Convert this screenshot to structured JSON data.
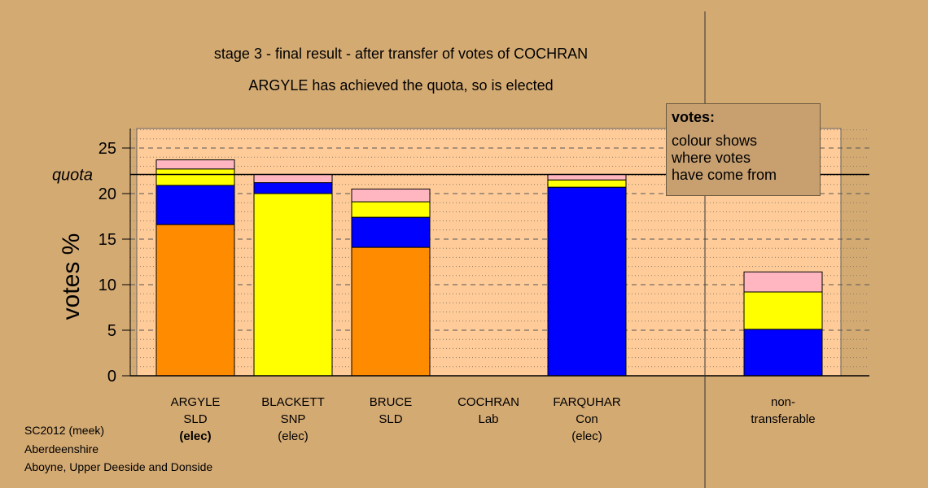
{
  "title": {
    "line1": "stage 3 - final result - after transfer of votes of COCHRAN",
    "line2": "ARGYLE has achieved the quota, so is elected"
  },
  "legend": {
    "heading": "votes:",
    "lines": [
      "colour shows",
      "where votes",
      "have come from"
    ]
  },
  "footer": {
    "line1": "SC2012 (meek)",
    "line2": "Aberdeenshire",
    "line3": "Aboyne, Upper Deeside and Donside"
  },
  "colors": {
    "background": "#d4aa73",
    "plot_area": "#ffcc99",
    "orange": "#ff8c00",
    "yellow": "#ffff00",
    "blue": "#0000ff",
    "pink": "#ffb6c1"
  },
  "chart_data": {
    "type": "bar",
    "stacked": true,
    "ylabel": "votes %",
    "ylim": [
      0,
      27
    ],
    "yticks": [
      0,
      5,
      10,
      15,
      20,
      25
    ],
    "quota": 22.1,
    "quota_label": "quota",
    "grid": true,
    "categories": [
      {
        "lines": [
          "ARGYLE",
          "SLD",
          "(elec)"
        ],
        "bold_line": 2
      },
      {
        "lines": [
          "BLACKETT",
          "SNP",
          "(elec)"
        ]
      },
      {
        "lines": [
          "BRUCE",
          "SLD"
        ]
      },
      {
        "lines": [
          "COCHRAN",
          "Lab"
        ]
      },
      {
        "lines": [
          "FARQUHAR",
          "Con",
          "(elec)"
        ]
      },
      {
        "lines": [
          "non-",
          "transferable"
        ]
      }
    ],
    "series": [
      {
        "color": "#ff8c00",
        "values": [
          16.6,
          0,
          14.1,
          0,
          0,
          0
        ]
      },
      {
        "color": "#0000ff",
        "values": [
          4.3,
          1.2,
          3.3,
          0,
          20.7,
          5.1
        ]
      },
      {
        "color": "#ffff00",
        "values": [
          1.8,
          20.0,
          1.7,
          0,
          0.8,
          4.1
        ]
      },
      {
        "color": "#ffb6c1",
        "values": [
          1.0,
          0.9,
          1.4,
          0,
          0.6,
          2.2
        ]
      }
    ],
    "series_order_bottom_to_top": {
      "0": [
        "#ff8c00",
        "#0000ff",
        "#ffff00",
        "#ffb6c1"
      ],
      "1": [
        "#ffff00",
        "#0000ff",
        "#ffb6c1"
      ],
      "2": [
        "#ff8c00",
        "#0000ff",
        "#ffff00",
        "#ffb6c1"
      ],
      "4": [
        "#0000ff",
        "#ffff00",
        "#ffb6c1"
      ],
      "5": [
        "#0000ff",
        "#ffff00",
        "#ffb6c1"
      ]
    }
  }
}
